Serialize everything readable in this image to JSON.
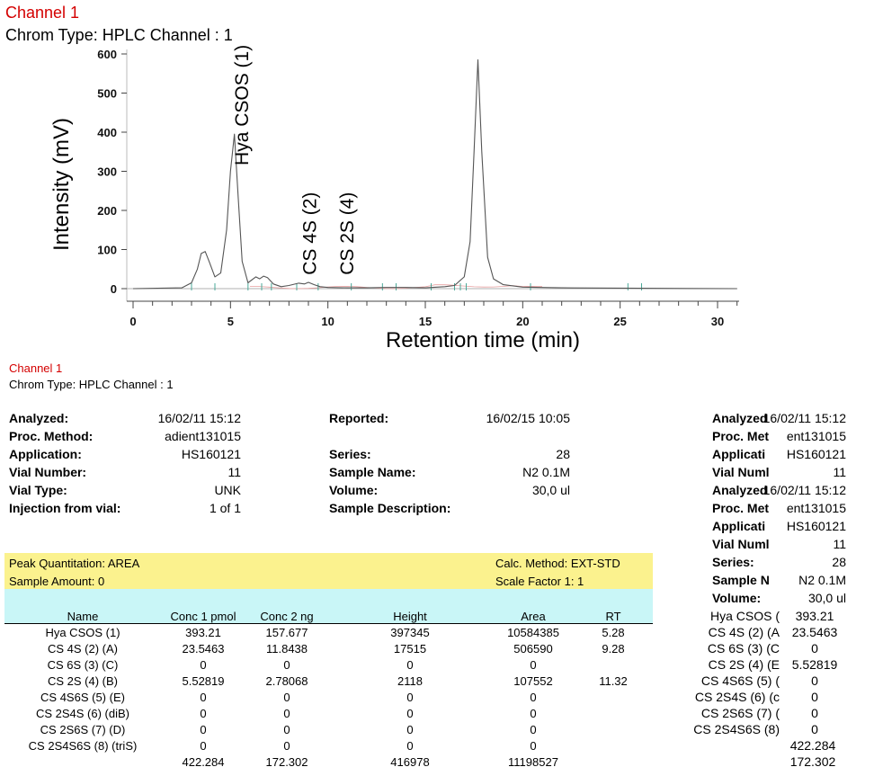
{
  "chart_header": {
    "channel": "Channel 1",
    "chrom_type": "Chrom Type: HPLC Channel : 1"
  },
  "chart_data": {
    "type": "line",
    "xlabel": "Retention time (min)",
    "ylabel": "Intensity (mV)",
    "xlim": [
      0,
      31
    ],
    "ylim": [
      0,
      600
    ],
    "x_ticks": [
      "0",
      "5",
      "10",
      "15",
      "20",
      "25",
      "30"
    ],
    "y_ticks": [
      "0",
      "100",
      "200",
      "300",
      "400",
      "500",
      "600"
    ],
    "series": [
      {
        "color": "#555555",
        "x": [
          0,
          2.5,
          3.0,
          3.3,
          3.5,
          3.7,
          3.9,
          4.2,
          4.5,
          4.8,
          5.0,
          5.2,
          5.4,
          5.6,
          5.9,
          6.3,
          6.5,
          6.7,
          6.9,
          7.2,
          7.6,
          8.0,
          8.5,
          8.8,
          9.0,
          9.3,
          9.6,
          10.0,
          11.0,
          12.0,
          13.0,
          14.0,
          15.0,
          16.0,
          16.5,
          17.0,
          17.3,
          17.5,
          17.7,
          17.9,
          18.2,
          18.5,
          19.0,
          20.0,
          22.0,
          26.0,
          31.0
        ],
        "y": [
          0,
          2,
          15,
          50,
          90,
          95,
          70,
          30,
          40,
          150,
          300,
          395,
          230,
          70,
          15,
          30,
          25,
          32,
          28,
          12,
          5,
          8,
          14,
          12,
          16,
          10,
          5,
          3,
          2,
          2,
          3,
          3,
          2,
          5,
          8,
          30,
          120,
          350,
          585,
          350,
          80,
          25,
          10,
          4,
          2,
          1,
          0
        ]
      }
    ],
    "annotations": [
      {
        "text": "Hya CSOS (1)",
        "x": 5.9,
        "y": 315
      },
      {
        "text": "CS 4S (2)",
        "x": 9.4,
        "y": 35
      },
      {
        "text": "CS 2S (4)",
        "x": 11.3,
        "y": 35
      }
    ]
  },
  "report_header": {
    "channel": "Channel 1",
    "chrom_type": "Chrom Type: HPLC Channel : 1"
  },
  "info_left": [
    {
      "label": "Analyzed:",
      "value": "16/02/11 15:12"
    },
    {
      "label": "Proc. Method:",
      "value": "adient131015"
    },
    {
      "label": "Application:",
      "value": "HS160121"
    },
    {
      "label": "Vial Number:",
      "value": "11"
    },
    {
      "label": "Vial Type:",
      "value": "UNK"
    },
    {
      "label": "Injection from vial:",
      "value": "1 of 1"
    }
  ],
  "info_mid": [
    {
      "label": "Reported:",
      "value": "16/02/15 10:05"
    },
    {
      "label": "",
      "value": ""
    },
    {
      "label": "Series:",
      "value": "28"
    },
    {
      "label": "Sample Name:",
      "value": "N2 0.1M"
    },
    {
      "label": "Volume:",
      "value": "30,0 ul"
    },
    {
      "label": "Sample Description:",
      "value": ""
    }
  ],
  "info_right": [
    {
      "label": "Analyzed",
      "value": "16/02/11 15:12"
    },
    {
      "label": "Proc. Met",
      "value": "ent131015"
    },
    {
      "label": "Applicati",
      "value": "HS160121"
    },
    {
      "label": "Vial Numl",
      "value": "11"
    },
    {
      "label": "Analyzed",
      "value": "16/02/11 15:12"
    },
    {
      "label": "Proc. Met",
      "value": "ent131015"
    },
    {
      "label": "Applicati",
      "value": "HS160121"
    },
    {
      "label": "Vial Numl",
      "value": "11"
    },
    {
      "label": "Series:",
      "value": "28"
    },
    {
      "label": "Sample N",
      "value": "N2 0.1M"
    },
    {
      "label": "Volume:",
      "value": "30,0 ul"
    }
  ],
  "quant": {
    "peak_quant": "Peak Quantitation: AREA",
    "calc_method": "Calc. Method: EXT-STD",
    "sample_amount": "Sample Amount:  0",
    "scale_factor": "Scale Factor 1:  1"
  },
  "table": {
    "headers": [
      "Name",
      "Conc 1  pmol",
      "Conc 2  ng",
      "Height",
      "Area",
      "RT"
    ],
    "rows": [
      [
        "Hya CSOS (1)",
        "393.21",
        "157.677",
        "397345",
        "10584385",
        "5.28"
      ],
      [
        "CS 4S (2) (A)",
        "23.5463",
        "11.8438",
        "17515",
        "506590",
        "9.28"
      ],
      [
        "CS 6S (3) (C)",
        "0",
        "0",
        "0",
        "0",
        ""
      ],
      [
        "CS 2S (4) (B)",
        "5.52819",
        "2.78068",
        "2118",
        "107552",
        "11.32"
      ],
      [
        "CS 4S6S (5) (E)",
        "0",
        "0",
        "0",
        "0",
        ""
      ],
      [
        "CS 2S4S (6) (diB)",
        "0",
        "0",
        "0",
        "0",
        ""
      ],
      [
        "CS 2S6S (7) (D)",
        "0",
        "0",
        "0",
        "0",
        ""
      ],
      [
        "CS 2S4S6S (8) (triS)",
        "0",
        "0",
        "0",
        "0",
        ""
      ]
    ],
    "totals": [
      "",
      "422.284",
      "172.302",
      "416978",
      "11198527",
      ""
    ]
  },
  "right_table": {
    "rows": [
      [
        "Hya CSOS (",
        "393.21"
      ],
      [
        "CS 4S (2) (A",
        "23.5463"
      ],
      [
        "CS 6S (3) (C",
        "0"
      ],
      [
        "CS 2S (4) (E",
        "5.52819"
      ],
      [
        "CS 4S6S (5) (",
        "0"
      ],
      [
        "CS 2S4S (6) (c",
        "0"
      ],
      [
        "CS 2S6S (7) (",
        "0"
      ],
      [
        "CS 2S4S6S (8)",
        "0"
      ]
    ],
    "totals": [
      "422.284",
      "172.302"
    ]
  }
}
